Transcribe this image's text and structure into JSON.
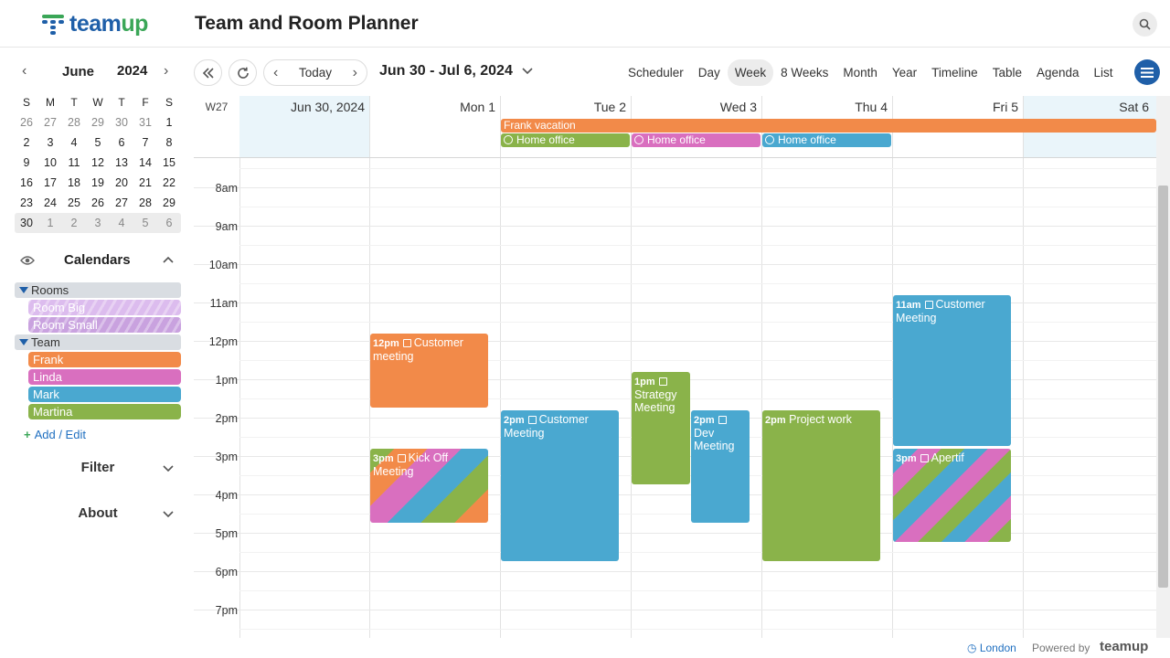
{
  "app": {
    "logo_text_a": "team",
    "logo_text_b": "up",
    "title": "Team and Room Planner"
  },
  "sidebar": {
    "mini": {
      "month": "June",
      "year": "2024",
      "dow": [
        "S",
        "M",
        "T",
        "W",
        "T",
        "F",
        "S"
      ],
      "weeks": [
        [
          "26",
          "27",
          "28",
          "29",
          "30",
          "31",
          "1"
        ],
        [
          "2",
          "3",
          "4",
          "5",
          "6",
          "7",
          "8"
        ],
        [
          "9",
          "10",
          "11",
          "12",
          "13",
          "14",
          "15"
        ],
        [
          "16",
          "17",
          "18",
          "19",
          "20",
          "21",
          "22"
        ],
        [
          "23",
          "24",
          "25",
          "26",
          "27",
          "28",
          "29"
        ],
        [
          "30",
          "1",
          "2",
          "3",
          "4",
          "5",
          "6"
        ]
      ]
    },
    "calendars_title": "Calendars",
    "groups": {
      "rooms": "Rooms",
      "team": "Team"
    },
    "rooms": [
      {
        "label": "Room Big",
        "color": "#d7b6ea"
      },
      {
        "label": "Room Small",
        "color": "#c9a2df"
      }
    ],
    "team": [
      {
        "label": "Frank",
        "color": "#f28a49"
      },
      {
        "label": "Linda",
        "color": "#d96fbf"
      },
      {
        "label": "Mark",
        "color": "#4aa8d0"
      },
      {
        "label": "Martina",
        "color": "#8ab34a"
      }
    ],
    "add_edit": "Add / Edit",
    "filter": "Filter",
    "about": "About"
  },
  "toolbar": {
    "today": "Today",
    "range": "Jun 30 - Jul 6, 2024",
    "views": [
      "Scheduler",
      "Day",
      "Week",
      "8 Weeks",
      "Month",
      "Year",
      "Timeline",
      "Table",
      "Agenda",
      "List"
    ],
    "active_view": "Week"
  },
  "grid": {
    "week_label": "W27",
    "days": [
      "Jun 30, 2024",
      "Mon 1",
      "Tue 2",
      "Wed 3",
      "Thu 4",
      "Fri 5",
      "Sat 6"
    ],
    "hours": [
      "8am",
      "9am",
      "10am",
      "11am",
      "12pm",
      "1pm",
      "2pm",
      "3pm",
      "4pm",
      "5pm",
      "6pm",
      "7pm"
    ]
  },
  "allday_events": [
    {
      "title": "Frank vacation",
      "color": "#f28a49"
    },
    {
      "title": "Home office",
      "color": "#8ab34a"
    },
    {
      "title": "Home office",
      "color": "#d96fbf"
    },
    {
      "title": "Home office",
      "color": "#4aa8d0"
    }
  ],
  "events": [
    {
      "time": "12pm",
      "title": "Customer meeting",
      "color": "#f28a49"
    },
    {
      "time": "3pm",
      "title": "Kick Off Meeting",
      "color": "striped"
    },
    {
      "time": "2pm",
      "title": "Customer Meeting",
      "color": "#4aa8d0"
    },
    {
      "time": "1pm",
      "title": "Strategy Meeting",
      "color": "#8ab34a"
    },
    {
      "time": "2pm",
      "title": "Dev Meeting",
      "color": "#4aa8d0"
    },
    {
      "time": "2pm",
      "title": "Project work",
      "color": "#8ab34a"
    },
    {
      "time": "11am",
      "title": "Customer Meeting",
      "color": "#4aa8d0"
    },
    {
      "time": "3pm",
      "title": "Apertif",
      "color": "striped"
    }
  ],
  "footer": {
    "timezone": "London",
    "powered_by": "Powered by",
    "brand": "teamup"
  }
}
